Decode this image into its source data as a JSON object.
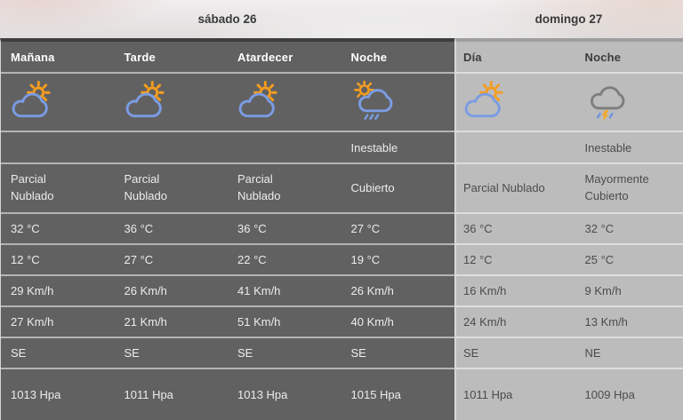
{
  "colors": {
    "dark_panel_bg": "#616161",
    "light_panel_bg": "#bcbcbc",
    "sun_orange": "#f59d1e",
    "cloud_blue": "#7b9ce3",
    "storm_cloud_gray": "#7e7e7e",
    "lightning_orange": "#f5a623"
  },
  "days": [
    {
      "title": "sábado 26",
      "columns": [
        {
          "label": "Mañana",
          "icon": "sun-cloud",
          "condition": "",
          "description": "Parcial Nublado",
          "temp_max": "32 °C",
          "temp_min": "12 °C",
          "wind_1": "29 Km/h",
          "wind_2": "27 Km/h",
          "direction": "SE",
          "pressure": "1013 Hpa"
        },
        {
          "label": "Tarde",
          "icon": "sun-cloud",
          "condition": "",
          "description": "Parcial Nublado",
          "temp_max": "36 °C",
          "temp_min": "27 °C",
          "wind_1": "26 Km/h",
          "wind_2": "21 Km/h",
          "direction": "SE",
          "pressure": "1011 Hpa"
        },
        {
          "label": "Atardecer",
          "icon": "sun-cloud",
          "condition": "",
          "description": "Parcial Nublado",
          "temp_max": "36 °C",
          "temp_min": "22 °C",
          "wind_1": "41 Km/h",
          "wind_2": "51 Km/h",
          "direction": "SE",
          "pressure": "1013 Hpa"
        },
        {
          "label": "Noche",
          "icon": "sun-cloud-rain",
          "condition": "Inestable",
          "description": "Cubierto",
          "temp_max": "27 °C",
          "temp_min": "19 °C",
          "wind_1": "26 Km/h",
          "wind_2": "40 Km/h",
          "direction": "SE",
          "pressure": "1015 Hpa"
        }
      ]
    },
    {
      "title": "domingo 27",
      "columns": [
        {
          "label": "Día",
          "icon": "sun-cloud",
          "condition": "",
          "description": "Parcial Nublado",
          "temp_max": "36 °C",
          "temp_min": "12 °C",
          "wind_1": "16 Km/h",
          "wind_2": "24 Km/h",
          "direction": "SE",
          "pressure": "1011 Hpa"
        },
        {
          "label": "Noche",
          "icon": "cloud-storm",
          "condition": "Inestable",
          "description": "Mayormente Cubierto",
          "temp_max": "32 °C",
          "temp_min": "25 °C",
          "wind_1": "9 Km/h",
          "wind_2": "13 Km/h",
          "direction": "NE",
          "pressure": "1009 Hpa"
        }
      ]
    }
  ]
}
